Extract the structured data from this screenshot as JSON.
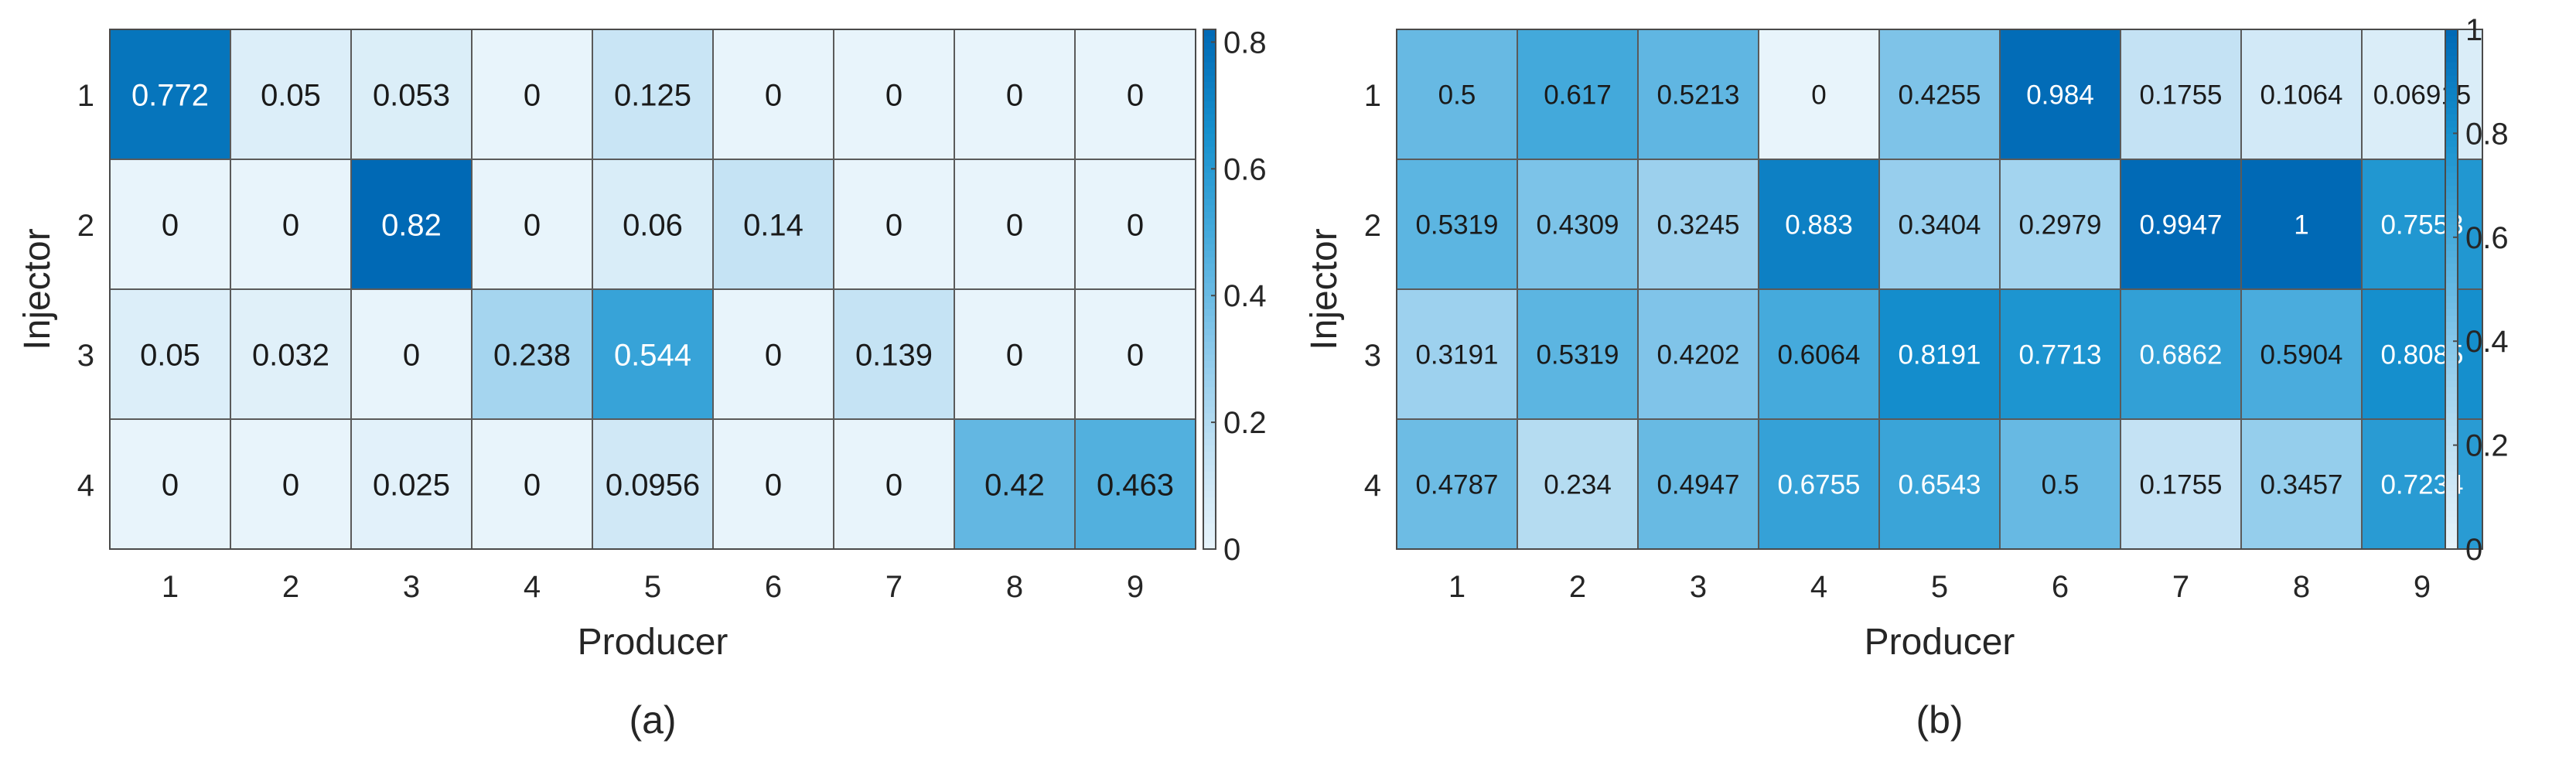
{
  "chart_data": [
    {
      "type": "heatmap",
      "panel_label": "(a)",
      "xlabel": "Producer",
      "ylabel": "Injector",
      "x_categories": [
        "1",
        "2",
        "3",
        "4",
        "5",
        "6",
        "7",
        "8",
        "9"
      ],
      "y_categories": [
        "1",
        "2",
        "3",
        "4"
      ],
      "cell_labels": [
        [
          "0.772",
          "0.05",
          "0.053",
          "0",
          "0.125",
          "0",
          "0",
          "0",
          "0"
        ],
        [
          "0",
          "0",
          "0.82",
          "0",
          "0.06",
          "0.14",
          "0",
          "0",
          "0"
        ],
        [
          "0.05",
          "0.032",
          "0",
          "0.238",
          "0.544",
          "0",
          "0.139",
          "0",
          "0"
        ],
        [
          "0",
          "0",
          "0.025",
          "0",
          "0.0956",
          "0",
          "0",
          "0.42",
          "0.463"
        ]
      ],
      "colorbar": {
        "range": [
          0,
          0.82
        ],
        "ticks": [
          "0",
          "0.2",
          "0.4",
          "0.6",
          "0.8"
        ]
      }
    },
    {
      "type": "heatmap",
      "panel_label": "(b)",
      "xlabel": "Producer",
      "ylabel": "Injector",
      "x_categories": [
        "1",
        "2",
        "3",
        "4",
        "5",
        "6",
        "7",
        "8",
        "9"
      ],
      "y_categories": [
        "1",
        "2",
        "3",
        "4"
      ],
      "cell_labels": [
        [
          "0.5",
          "0.617",
          "0.5213",
          "0",
          "0.4255",
          "0.984",
          "0.1755",
          "0.1064",
          "0.06915"
        ],
        [
          "0.5319",
          "0.4309",
          "0.3245",
          "0.883",
          "0.3404",
          "0.2979",
          "0.9947",
          "1",
          "0.7553"
        ],
        [
          "0.3191",
          "0.5319",
          "0.4202",
          "0.6064",
          "0.8191",
          "0.7713",
          "0.6862",
          "0.5904",
          "0.8085"
        ],
        [
          "0.4787",
          "0.234",
          "0.4947",
          "0.6755",
          "0.6543",
          "0.5",
          "0.1755",
          "0.3457",
          "0.7234"
        ]
      ],
      "colorbar": {
        "range": [
          0,
          1
        ],
        "ticks": [
          "0",
          "0.2",
          "0.4",
          "0.6",
          "0.8",
          "1"
        ]
      }
    }
  ],
  "colormap": [
    "#e8f4fb",
    "#bfe0f3",
    "#86c7ea",
    "#47abdc",
    "#1691ce",
    "#0069b5"
  ]
}
